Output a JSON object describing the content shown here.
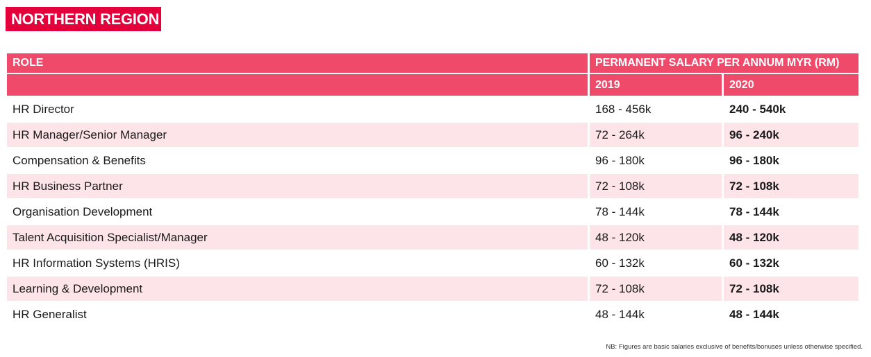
{
  "region_title": "NORTHERN REGION",
  "table": {
    "role_header": "ROLE",
    "salary_header": "PERMANENT SALARY PER ANNUM MYR (RM)",
    "year_2019": "2019",
    "year_2020": "2020",
    "rows": [
      {
        "role": "HR Director",
        "y2019": "168 - 456k",
        "y2020": "240 - 540k"
      },
      {
        "role": "HR Manager/Senior Manager",
        "y2019": "72 - 264k",
        "y2020": "96 - 240k"
      },
      {
        "role": "Compensation & Benefits",
        "y2019": "96 - 180k",
        "y2020": "96 - 180k"
      },
      {
        "role": "HR Business Partner",
        "y2019": "72 - 108k",
        "y2020": "72 - 108k"
      },
      {
        "role": "Organisation Development",
        "y2019": "78 - 144k",
        "y2020": "78 - 144k"
      },
      {
        "role": "Talent Acquisition Specialist/Manager",
        "y2019": "48 - 120k",
        "y2020": "48 - 120k"
      },
      {
        "role": "HR Information Systems (HRIS)",
        "y2019": "60 - 132k",
        "y2020": "60 - 132k"
      },
      {
        "role": "Learning & Development",
        "y2019": "72 - 108k",
        "y2020": "72 - 108k"
      },
      {
        "role": "HR Generalist",
        "y2019": "48 - 144k",
        "y2020": "48 - 144k"
      }
    ]
  },
  "footnote": "NB: Figures are basic salaries exclusive of benefits/bonuses unless otherwise specified.",
  "colors": {
    "badge": "#e4003a",
    "header": "#f04a6a",
    "stripe": "#fce4e8"
  }
}
